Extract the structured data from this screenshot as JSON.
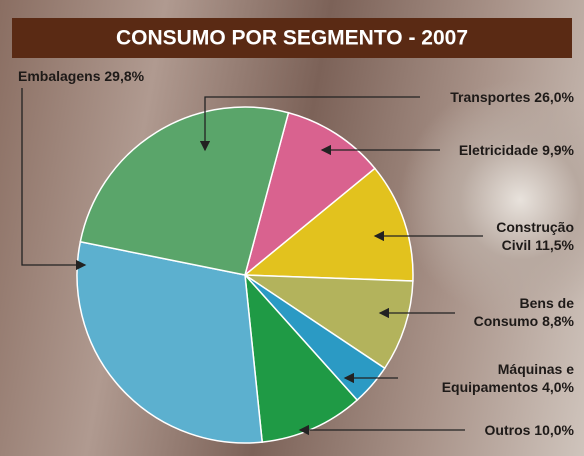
{
  "chart_data": {
    "type": "pie",
    "title": "CONSUMO POR SEGMENTO - 2007",
    "categories": [
      "Eletricidade",
      "Construção Civil",
      "Bens de Consumo",
      "Máquinas e Equipamentos",
      "Outros",
      "Embalagens",
      "Transportes"
    ],
    "values": [
      9.9,
      11.5,
      8.8,
      4.0,
      10.0,
      29.8,
      26.0
    ],
    "value_labels": [
      "9,9%",
      "11,5%",
      "8,8%",
      "4,0%",
      "10,0%",
      "29,8%",
      "26,0%"
    ],
    "colors": [
      "#d9628f",
      "#e2c21e",
      "#b3b35c",
      "#2b9ac4",
      "#1f9a45",
      "#5cb0cf",
      "#5aa56a"
    ]
  }
}
